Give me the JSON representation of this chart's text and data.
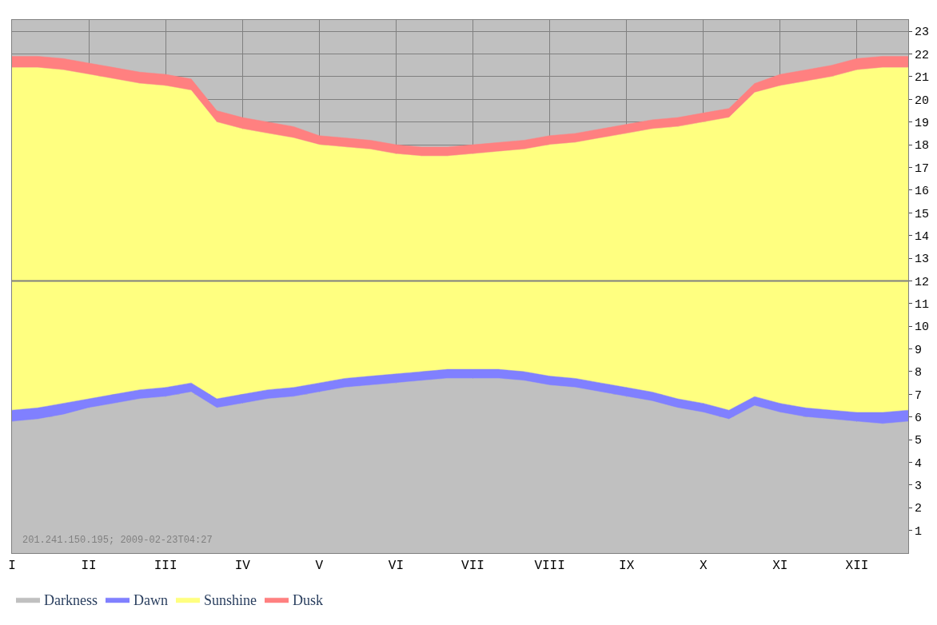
{
  "chart_data": {
    "type": "area",
    "stacked": true,
    "categories": [
      "I",
      null,
      null,
      "II",
      null,
      null,
      "III",
      null,
      null,
      "IV",
      null,
      null,
      "V",
      null,
      null,
      "VI",
      null,
      null,
      "VII",
      null,
      null,
      "VIII",
      null,
      null,
      "IX",
      null,
      null,
      "X",
      null,
      null,
      "XI",
      null,
      null,
      "XII",
      null,
      null
    ],
    "series": [
      {
        "name": "Darkness",
        "color": "#c0c0c0",
        "values": [
          5.8,
          5.9,
          6.1,
          6.4,
          6.6,
          6.8,
          6.9,
          7.1,
          6.4,
          6.6,
          6.8,
          6.9,
          7.1,
          7.3,
          7.4,
          7.5,
          7.6,
          7.7,
          7.7,
          7.7,
          7.6,
          7.4,
          7.3,
          7.1,
          6.9,
          6.7,
          6.4,
          6.2,
          5.9,
          6.5,
          6.2,
          6.0,
          5.9,
          5.8,
          5.7,
          5.8
        ]
      },
      {
        "name": "Dawn",
        "color": "#8080ff",
        "values": [
          0.5,
          0.5,
          0.5,
          0.4,
          0.4,
          0.4,
          0.4,
          0.4,
          0.4,
          0.4,
          0.4,
          0.4,
          0.4,
          0.4,
          0.4,
          0.4,
          0.4,
          0.4,
          0.4,
          0.4,
          0.4,
          0.4,
          0.4,
          0.4,
          0.4,
          0.4,
          0.4,
          0.4,
          0.4,
          0.4,
          0.4,
          0.4,
          0.4,
          0.4,
          0.5,
          0.5
        ]
      },
      {
        "name": "Sunshine",
        "color": "#ffff80",
        "values": [
          15.1,
          15.0,
          14.7,
          14.3,
          13.9,
          13.5,
          13.3,
          12.9,
          12.2,
          11.7,
          11.3,
          11.0,
          10.5,
          10.2,
          10.0,
          9.7,
          9.5,
          9.4,
          9.5,
          9.6,
          9.8,
          10.2,
          10.4,
          10.8,
          11.2,
          11.6,
          12.0,
          12.4,
          12.9,
          13.4,
          14.0,
          14.4,
          14.7,
          15.1,
          15.2,
          15.1
        ]
      },
      {
        "name": "Dusk",
        "color": "#ff8080",
        "values": [
          0.5,
          0.5,
          0.5,
          0.5,
          0.5,
          0.5,
          0.5,
          0.5,
          0.5,
          0.5,
          0.5,
          0.5,
          0.4,
          0.4,
          0.4,
          0.4,
          0.4,
          0.4,
          0.4,
          0.4,
          0.4,
          0.4,
          0.4,
          0.4,
          0.4,
          0.4,
          0.4,
          0.4,
          0.4,
          0.4,
          0.5,
          0.5,
          0.5,
          0.5,
          0.5,
          0.5
        ]
      }
    ],
    "ylim": [
      0,
      23.5
    ],
    "yticks": [
      1,
      2,
      3,
      4,
      5,
      6,
      7,
      8,
      9,
      10,
      11,
      12,
      13,
      14,
      15,
      16,
      17,
      18,
      19,
      20,
      21,
      22,
      23
    ],
    "grid": true,
    "legend": "bottom left",
    "ref_lines": [
      {
        "axis": "y",
        "value": 12,
        "color": "#808080",
        "line_style": "solid"
      }
    ],
    "annotations": [
      "201.241.150.195; 2009-02-23T04:27"
    ]
  }
}
